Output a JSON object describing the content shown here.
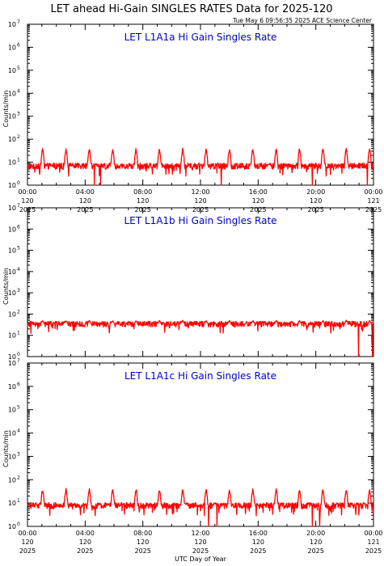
{
  "title": "LET ahead Hi-Gain SINGLES RATES Data for 2025-120",
  "timestamp": "Tue May  6 09:56:35 2025 ACE Science Center",
  "xlabel": "UTC Day of Year",
  "chart_data": [
    {
      "type": "line",
      "title": "LET L1A1a Hi Gain Singles Rate",
      "ylabel": "Counts/min",
      "yscale": "log",
      "ylim": [
        1,
        10000000
      ],
      "color": "#ff0000",
      "baseline": 7,
      "spikes": {
        "period_hours": 1.62,
        "first_hour": 1.05,
        "peak": 40
      },
      "x_ticks": [
        {
          "time": "00:00",
          "day": "120",
          "year": "2025"
        },
        {
          "time": "04:00",
          "day": "120",
          "year": "2025"
        },
        {
          "time": "08:00",
          "day": "120",
          "year": "2025"
        },
        {
          "time": "12:00",
          "day": "120",
          "year": "2025"
        },
        {
          "time": "16:00",
          "day": "120",
          "year": "2025"
        },
        {
          "time": "20:00",
          "day": "120",
          "year": "2025"
        },
        {
          "time": "00:00",
          "day": "121",
          "year": "2025"
        }
      ]
    },
    {
      "type": "line",
      "title": "LET L1A1b Hi Gain Singles Rate",
      "ylabel": "Counts/min",
      "yscale": "log",
      "ylim": [
        1,
        10000000
      ],
      "color": "#ff0000",
      "baseline": 35,
      "spikes": {
        "period_hours": 1.62,
        "first_hour": 1.05,
        "peak": 50
      },
      "x_ticks": []
    },
    {
      "type": "line",
      "title": "LET L1A1c Hi Gain Singles Rate",
      "ylabel": "Counts/min",
      "yscale": "log",
      "ylim": [
        1,
        10000000
      ],
      "color": "#ff0000",
      "baseline": 8,
      "spikes": {
        "period_hours": 1.62,
        "first_hour": 1.05,
        "peak": 40
      },
      "x_ticks": [
        {
          "time": "00:00",
          "day": "120",
          "year": "2025"
        },
        {
          "time": "04:00",
          "day": "120",
          "year": "2025"
        },
        {
          "time": "08:00",
          "day": "120",
          "year": "2025"
        },
        {
          "time": "12:00",
          "day": "120",
          "year": "2025"
        },
        {
          "time": "16:00",
          "day": "120",
          "year": "2025"
        },
        {
          "time": "20:00",
          "day": "120",
          "year": "2025"
        },
        {
          "time": "00:00",
          "day": "121",
          "year": "2025"
        }
      ]
    }
  ]
}
